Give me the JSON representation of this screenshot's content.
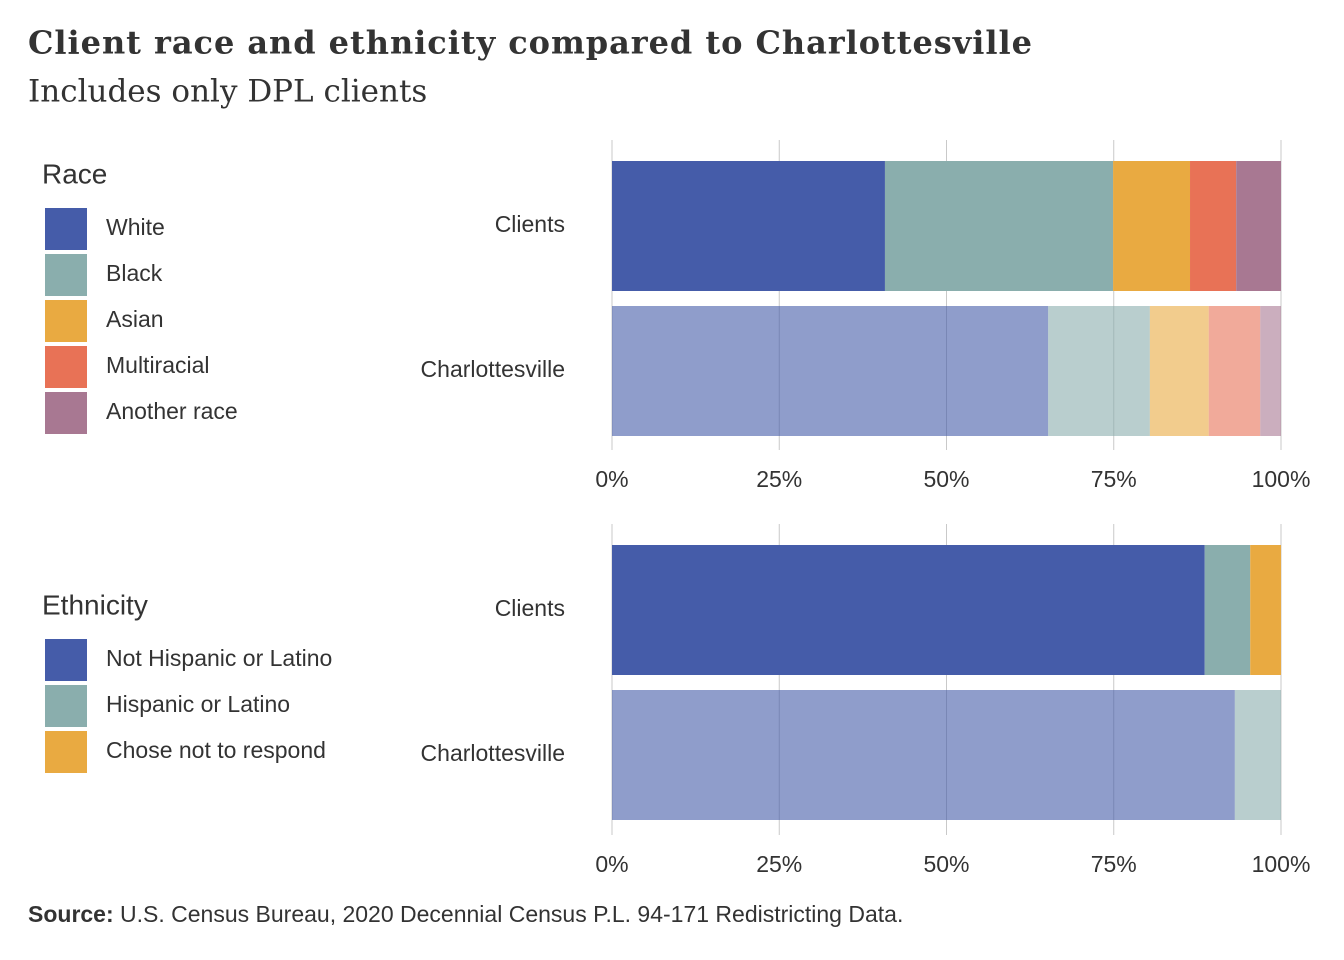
{
  "title": "Client race and ethnicity compared to Charlottesville",
  "subtitle": "Includes only DPL clients",
  "source": {
    "label": "Source:",
    "text": "U.S. Census Bureau, 2020 Decennial Census P.L. 94-171 Redistricting Data."
  },
  "chart_data": [
    {
      "type": "stacked-bar-horizontal",
      "legend_title": "Race",
      "categories": [
        "Clients",
        "Charlottesville"
      ],
      "series": [
        {
          "name": "White",
          "color": "#455ca9",
          "values": [
            40.8,
            65.2
          ]
        },
        {
          "name": "Black",
          "color": "#8aaead",
          "values": [
            34.1,
            15.2
          ]
        },
        {
          "name": "Asian",
          "color": "#e9aa41",
          "values": [
            11.5,
            8.8
          ]
        },
        {
          "name": "Multiracial",
          "color": "#e87256",
          "values": [
            6.9,
            7.7
          ]
        },
        {
          "name": "Another race",
          "color": "#a87892",
          "values": [
            6.7,
            3.1
          ]
        }
      ],
      "xlim": [
        0,
        100
      ],
      "xticks": [
        {
          "value": 0,
          "label": "0%"
        },
        {
          "value": 25,
          "label": "25%"
        },
        {
          "value": 50,
          "label": "50%"
        },
        {
          "value": 75,
          "label": "75%"
        },
        {
          "value": 100,
          "label": "100%"
        }
      ],
      "grid": true
    },
    {
      "type": "stacked-bar-horizontal",
      "legend_title": "Ethnicity",
      "categories": [
        "Clients",
        "Charlottesville"
      ],
      "series": [
        {
          "name": "Not Hispanic or Latino",
          "color": "#455ca9",
          "values": [
            88.6,
            93.1
          ]
        },
        {
          "name": "Hispanic or Latino",
          "color": "#8aaead",
          "values": [
            6.8,
            6.9
          ]
        },
        {
          "name": "Chose not to respond",
          "color": "#e9aa41",
          "values": [
            4.6,
            null
          ]
        }
      ],
      "xlim": [
        0,
        100
      ],
      "xticks": [
        {
          "value": 0,
          "label": "0%"
        },
        {
          "value": 25,
          "label": "25%"
        },
        {
          "value": 50,
          "label": "50%"
        },
        {
          "value": 75,
          "label": "75%"
        },
        {
          "value": 100,
          "label": "100%"
        }
      ],
      "grid": true
    }
  ]
}
